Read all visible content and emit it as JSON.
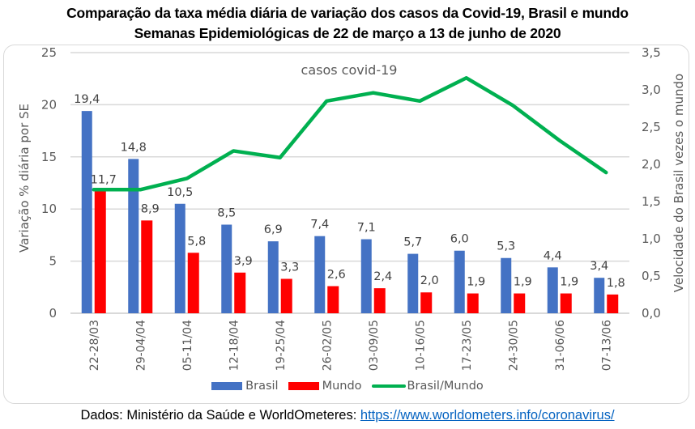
{
  "title_line1": "Comparação da taxa média diária de variação dos casos da Covid-19, Brasil e mundo",
  "title_line2": "Semanas Epidemiológicas de 22 de março a 13 de junho de 2020",
  "source": {
    "prefix": "Dados: Ministério da Saúde e WorldOmeteres: ",
    "link_text": "https://www.worldometers.info/coronavirus/"
  },
  "colors": {
    "brasil": "#4472c4",
    "mundo": "#ff0000",
    "ratio": "#00b050",
    "grid": "#d9d9d9"
  },
  "chart_data": {
    "type": "bar",
    "title": "Comparação da taxa média diária de variação dos casos da Covid-19, Brasil e mundo",
    "subtitle": "Semanas Epidemiológicas de 22 de março a 13 de junho de 2020",
    "annotation": "casos covid-19",
    "xlabel": "",
    "ylabel": "Variação % diária por SE",
    "y2label": "Velocidade do Brasil vezes o mundo",
    "ylim": [
      0,
      25
    ],
    "yticks": [
      "0",
      "5",
      "10",
      "15",
      "20",
      "25"
    ],
    "y2lim": [
      0,
      3.5
    ],
    "y2ticks": [
      "0,0",
      "0,5",
      "1,0",
      "1,5",
      "2,0",
      "2,5",
      "3,0",
      "3,5"
    ],
    "grid": true,
    "legend_position": "bottom",
    "categories": [
      "22-28/03",
      "29-04/04",
      "05-11/04",
      "12-18/04",
      "19-25/04",
      "26-02/05",
      "03-09/05",
      "10-16/05",
      "17-23/05",
      "24-30/05",
      "31-06/06",
      "07-13/06"
    ],
    "series": [
      {
        "name": "Brasil",
        "type": "bar",
        "axis": "left",
        "values": [
          19.4,
          14.8,
          10.5,
          8.5,
          6.9,
          7.4,
          7.1,
          5.7,
          6.0,
          5.3,
          4.4,
          3.4
        ],
        "labels": [
          "19,4",
          "14,8",
          "10,5",
          "8,5",
          "6,9",
          "7,4",
          "7,1",
          "5,7",
          "6,0",
          "5,3",
          "4,4",
          "3,4"
        ]
      },
      {
        "name": "Mundo",
        "type": "bar",
        "axis": "left",
        "values": [
          11.7,
          8.9,
          5.8,
          3.9,
          3.3,
          2.6,
          2.4,
          2.0,
          1.9,
          1.9,
          1.9,
          1.8
        ],
        "labels": [
          "11,7",
          "8,9",
          "5,8",
          "3,9",
          "3,3",
          "2,6",
          "2,4",
          "2,0",
          "1,9",
          "1,9",
          "1,9",
          "1,8"
        ]
      },
      {
        "name": "Brasil/Mundo",
        "type": "line",
        "axis": "right",
        "values": [
          1.66,
          1.66,
          1.81,
          2.18,
          2.09,
          2.85,
          2.96,
          2.85,
          3.16,
          2.79,
          2.32,
          1.89
        ]
      }
    ]
  }
}
